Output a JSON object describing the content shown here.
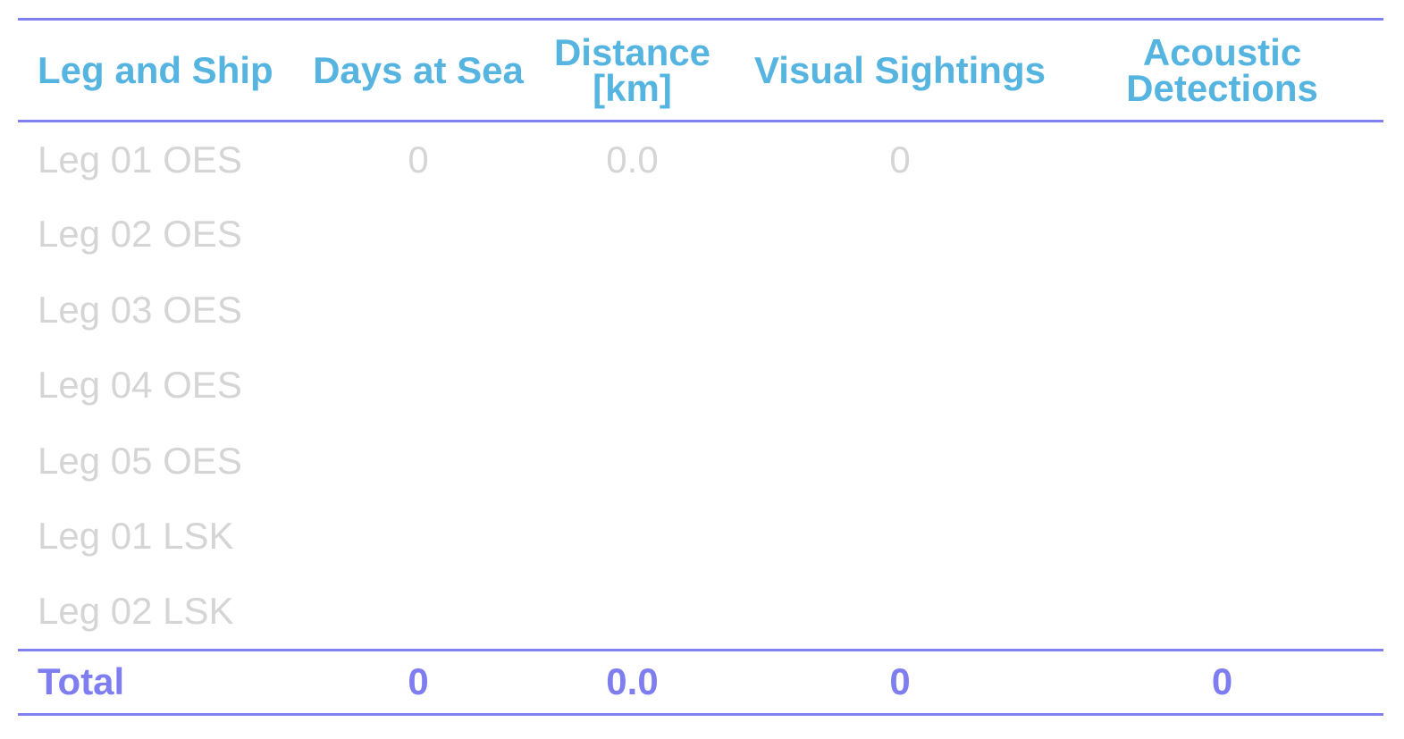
{
  "colors": {
    "header_text": "#55b4e0",
    "body_text": "#d5d5d5",
    "total_text": "#7e7ef0",
    "rule": "#8080f0"
  },
  "table": {
    "headers": [
      "Leg and Ship",
      "Days at Sea",
      "Distance [km]",
      "Visual Sightings",
      "Acoustic Detections"
    ],
    "rows": [
      [
        "Leg 01 OES",
        "0",
        "0.0",
        "0",
        ""
      ],
      [
        "Leg 02 OES",
        "",
        "",
        "",
        ""
      ],
      [
        "Leg 03 OES",
        "",
        "",
        "",
        ""
      ],
      [
        "Leg 04 OES",
        "",
        "",
        "",
        ""
      ],
      [
        "Leg 05 OES",
        "",
        "",
        "",
        ""
      ],
      [
        "Leg 01 LSK",
        "",
        "",
        "",
        ""
      ],
      [
        "Leg 02 LSK",
        "",
        "",
        "",
        ""
      ]
    ],
    "total": [
      "Total",
      "0",
      "0.0",
      "0",
      "0"
    ]
  }
}
